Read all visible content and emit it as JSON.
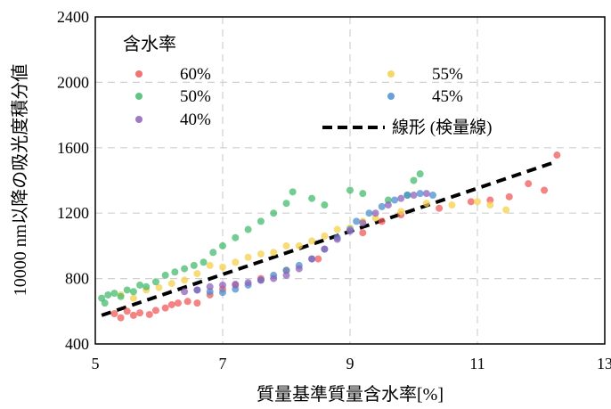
{
  "chart_data": {
    "type": "scatter",
    "xlabel": "質量基準質量含水率[%]",
    "ylabel": "10000 nm以降の吸光度積分値",
    "xlim": [
      5,
      13
    ],
    "ylim": [
      400,
      2400
    ],
    "xticks": [
      "5",
      "7",
      "9",
      "11",
      "13"
    ],
    "yticks": [
      "400",
      "800",
      "1200",
      "1600",
      "2000",
      "2400"
    ],
    "grid": true,
    "legend_title": "含水率",
    "legend_position": "top-left",
    "series": [
      {
        "name": "60%",
        "color": "#f05a5a",
        "points": [
          [
            5.3,
            585
          ],
          [
            5.4,
            560
          ],
          [
            5.5,
            600
          ],
          [
            5.6,
            575
          ],
          [
            5.7,
            590
          ],
          [
            5.85,
            580
          ],
          [
            5.95,
            605
          ],
          [
            6.1,
            620
          ],
          [
            6.2,
            640
          ],
          [
            6.3,
            650
          ],
          [
            6.45,
            660
          ],
          [
            6.6,
            650
          ],
          [
            6.8,
            700
          ],
          [
            7.0,
            735
          ],
          [
            7.2,
            760
          ],
          [
            7.6,
            800
          ],
          [
            8.0,
            850
          ],
          [
            8.5,
            920
          ],
          [
            9.2,
            1080
          ],
          [
            9.5,
            1150
          ],
          [
            9.8,
            1190
          ],
          [
            10.4,
            1230
          ],
          [
            10.9,
            1270
          ],
          [
            11.2,
            1280
          ],
          [
            11.5,
            1300
          ],
          [
            11.8,
            1380
          ],
          [
            12.05,
            1340
          ],
          [
            12.25,
            1555
          ]
        ]
      },
      {
        "name": "55%",
        "color": "#f5d04a",
        "points": [
          [
            5.4,
            700
          ],
          [
            5.6,
            680
          ],
          [
            5.8,
            730
          ],
          [
            6.0,
            745
          ],
          [
            6.2,
            770
          ],
          [
            6.4,
            790
          ],
          [
            6.6,
            830
          ],
          [
            6.8,
            880
          ],
          [
            7.0,
            870
          ],
          [
            7.2,
            900
          ],
          [
            7.4,
            930
          ],
          [
            7.6,
            950
          ],
          [
            7.8,
            960
          ],
          [
            8.0,
            1000
          ],
          [
            8.2,
            1000
          ],
          [
            8.4,
            1030
          ],
          [
            8.6,
            1060
          ],
          [
            8.8,
            1100
          ],
          [
            9.0,
            1110
          ],
          [
            9.2,
            1150
          ],
          [
            9.4,
            1170
          ],
          [
            9.8,
            1210
          ],
          [
            10.2,
            1260
          ],
          [
            10.6,
            1250
          ],
          [
            11.0,
            1270
          ],
          [
            11.2,
            1250
          ],
          [
            11.45,
            1220
          ]
        ]
      },
      {
        "name": "50%",
        "color": "#44bb6e",
        "points": [
          [
            5.1,
            680
          ],
          [
            5.15,
            650
          ],
          [
            5.2,
            700
          ],
          [
            5.3,
            710
          ],
          [
            5.4,
            690
          ],
          [
            5.5,
            730
          ],
          [
            5.6,
            720
          ],
          [
            5.7,
            760
          ],
          [
            5.8,
            750
          ],
          [
            5.95,
            780
          ],
          [
            6.1,
            820
          ],
          [
            6.25,
            840
          ],
          [
            6.4,
            860
          ],
          [
            6.55,
            880
          ],
          [
            6.7,
            900
          ],
          [
            6.85,
            960
          ],
          [
            7.0,
            1000
          ],
          [
            7.2,
            1050
          ],
          [
            7.4,
            1100
          ],
          [
            7.6,
            1150
          ],
          [
            7.8,
            1200
          ],
          [
            8.0,
            1260
          ],
          [
            8.1,
            1330
          ],
          [
            8.4,
            1290
          ],
          [
            8.6,
            1250
          ],
          [
            9.0,
            1340
          ],
          [
            9.2,
            1320
          ],
          [
            9.6,
            1280
          ],
          [
            9.9,
            1310
          ],
          [
            10.0,
            1400
          ],
          [
            10.1,
            1440
          ]
        ]
      },
      {
        "name": "45%",
        "color": "#4a8fd0",
        "points": [
          [
            6.6,
            730
          ],
          [
            6.8,
            720
          ],
          [
            7.0,
            715
          ],
          [
            7.2,
            735
          ],
          [
            7.4,
            760
          ],
          [
            7.6,
            790
          ],
          [
            7.8,
            820
          ],
          [
            8.0,
            850
          ],
          [
            8.2,
            880
          ],
          [
            8.4,
            920
          ],
          [
            8.6,
            980
          ],
          [
            8.8,
            1050
          ],
          [
            9.0,
            1100
          ],
          [
            9.1,
            1150
          ],
          [
            9.3,
            1200
          ],
          [
            9.5,
            1240
          ],
          [
            9.7,
            1280
          ],
          [
            9.9,
            1310
          ],
          [
            10.1,
            1320
          ],
          [
            10.3,
            1310
          ]
        ]
      },
      {
        "name": "40%",
        "color": "#8e63b8",
        "points": [
          [
            6.4,
            720
          ],
          [
            6.6,
            730
          ],
          [
            6.8,
            750
          ],
          [
            7.0,
            760
          ],
          [
            7.2,
            765
          ],
          [
            7.4,
            775
          ],
          [
            7.6,
            790
          ],
          [
            7.8,
            800
          ],
          [
            8.0,
            820
          ],
          [
            8.2,
            860
          ],
          [
            8.4,
            920
          ],
          [
            8.6,
            980
          ],
          [
            8.8,
            1040
          ],
          [
            9.0,
            1090
          ],
          [
            9.2,
            1140
          ],
          [
            9.4,
            1200
          ],
          [
            9.6,
            1250
          ],
          [
            9.8,
            1290
          ],
          [
            10.0,
            1310
          ],
          [
            10.2,
            1320
          ]
        ]
      }
    ],
    "fit_line": {
      "name": "線形 (検量線)",
      "color": "#000000",
      "x": [
        5.1,
        12.2
      ],
      "y": [
        575,
        1510
      ]
    }
  }
}
